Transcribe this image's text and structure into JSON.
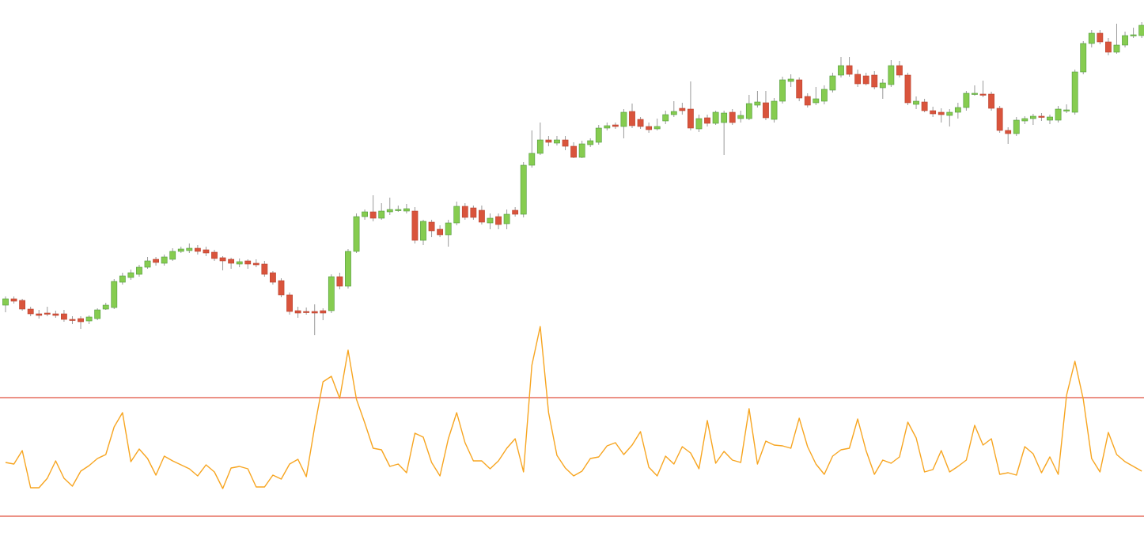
{
  "chart_data": [
    {
      "type": "candlestick",
      "open": [
        314,
        322,
        320,
        309,
        303,
        304,
        303,
        303,
        296,
        297,
        294,
        297,
        309,
        311,
        343,
        349,
        353,
        362,
        372,
        367,
        372,
        382,
        383,
        386,
        384,
        381,
        374,
        372,
        366,
        370,
        367,
        366,
        355,
        345,
        327,
        307,
        306,
        306,
        307,
        307,
        350,
        338,
        382,
        426,
        432,
        424,
        432,
        434,
        433,
        433,
        396,
        419,
        410,
        403,
        418,
        439,
        437,
        434,
        418,
        426,
        417,
        434,
        429,
        491,
        506,
        523,
        519,
        523,
        515,
        501,
        517,
        520,
        538,
        542,
        540,
        559,
        549,
        540,
        537,
        547,
        555,
        563,
        562,
        537,
        551,
        544,
        545,
        558,
        550,
        550,
        567,
        570,
        549,
        572,
        597,
        599,
        578,
        570,
        572,
        586,
        605,
        617,
        606,
        604,
        605,
        589,
        593,
        617,
        605,
        568,
        571,
        560,
        558,
        554,
        558,
        564,
        581,
        581,
        581,
        563,
        535,
        531,
        547,
        550,
        553,
        548,
        548,
        560,
        558,
        609,
        645,
        658,
        647,
        634,
        643,
        655,
        655
      ],
      "close": [
        322,
        319,
        309,
        303,
        301,
        303,
        301,
        296,
        295,
        293,
        299,
        308,
        314,
        344,
        351,
        355,
        362,
        370,
        368,
        375,
        382,
        385,
        386,
        382,
        380,
        373,
        370,
        367,
        369,
        366,
        365,
        353,
        343,
        327,
        306,
        304,
        305,
        304,
        304,
        350,
        338,
        382,
        426,
        432,
        424,
        433,
        435,
        435,
        436,
        396,
        420,
        408,
        403,
        418,
        439,
        425,
        425,
        419,
        424,
        416,
        429,
        429,
        491,
        506,
        523,
        520,
        523,
        515,
        501,
        518,
        522,
        538,
        541,
        540,
        558,
        541,
        540,
        536,
        540,
        555,
        559,
        560,
        538,
        550,
        544,
        558,
        557,
        545,
        554,
        569,
        571,
        551,
        572,
        599,
        600,
        576,
        567,
        575,
        587,
        604,
        617,
        606,
        594,
        594,
        590,
        595,
        617,
        605,
        570,
        572,
        560,
        556,
        555,
        558,
        564,
        582,
        582,
        580,
        563,
        535,
        531,
        548,
        550,
        553,
        552,
        552,
        562,
        561,
        609,
        645,
        658,
        647,
        634,
        643,
        655,
        656,
        668
      ],
      "high": [
        325,
        325,
        322,
        312,
        308,
        312,
        307,
        308,
        300,
        300,
        301,
        310,
        317,
        347,
        355,
        359,
        365,
        375,
        375,
        378,
        386,
        388,
        392,
        390,
        388,
        384,
        376,
        374,
        373,
        372,
        372,
        370,
        357,
        348,
        330,
        312,
        311,
        315,
        310,
        353,
        355,
        385,
        430,
        435,
        453,
        443,
        450,
        440,
        442,
        438,
        422,
        422,
        415,
        422,
        445,
        443,
        440,
        440,
        430,
        430,
        435,
        438,
        495,
        535,
        545,
        528,
        528,
        528,
        520,
        522,
        525,
        542,
        545,
        545,
        562,
        569,
        552,
        545,
        550,
        560,
        572,
        570,
        597,
        555,
        555,
        560,
        560,
        562,
        560,
        580,
        585,
        585,
        576,
        603,
        606,
        602,
        582,
        590,
        592,
        608,
        628,
        628,
        612,
        608,
        610,
        600,
        624,
        623,
        608,
        578,
        575,
        565,
        563,
        562,
        570,
        585,
        592,
        598,
        584,
        566,
        539,
        552,
        553,
        556,
        557,
        555,
        566,
        568,
        612,
        648,
        662,
        662,
        652,
        670,
        660,
        665,
        672
      ],
      "low": [
        305,
        316,
        307,
        300,
        297,
        300,
        298,
        293,
        290,
        284,
        290,
        295,
        308,
        309,
        340,
        346,
        350,
        360,
        364,
        364,
        370,
        380,
        380,
        378,
        376,
        370,
        358,
        360,
        362,
        360,
        362,
        350,
        340,
        324,
        302,
        298,
        302,
        276,
        295,
        304,
        334,
        335,
        380,
        422,
        420,
        422,
        428,
        432,
        430,
        392,
        390,
        400,
        400,
        388,
        415,
        422,
        422,
        416,
        410,
        410,
        410,
        426,
        425,
        488,
        504,
        515,
        516,
        510,
        500,
        500,
        514,
        517,
        535,
        537,
        525,
        538,
        537,
        532,
        535,
        543,
        552,
        555,
        535,
        533,
        540,
        542,
        504,
        542,
        545,
        548,
        564,
        548,
        545,
        569,
        590,
        572,
        564,
        567,
        568,
        583,
        602,
        603,
        590,
        592,
        587,
        575,
        590,
        602,
        567,
        562,
        558,
        552,
        545,
        540,
        550,
        560,
        579,
        577,
        560,
        532,
        518,
        528,
        543,
        542,
        547,
        543,
        545,
        557,
        555,
        606,
        640,
        644,
        630,
        632,
        640,
        652,
        652
      ],
      "up_color": "#86cc50",
      "down_color": "#d9543c",
      "wick_color": "#9a9a9a",
      "ylim": [
        0,
        700
      ]
    },
    {
      "type": "line",
      "values": [
        115,
        113,
        130,
        83,
        83,
        95,
        117,
        95,
        85,
        104,
        111,
        120,
        125,
        160,
        178,
        116,
        132,
        120,
        99,
        123,
        117,
        112,
        107,
        98,
        112,
        103,
        82,
        108,
        110,
        107,
        84,
        84,
        99,
        94,
        113,
        119,
        97,
        160,
        217,
        224,
        196,
        257,
        195,
        165,
        133,
        131,
        110,
        113,
        102,
        152,
        147,
        115,
        98,
        145,
        178,
        140,
        117,
        117,
        107,
        117,
        133,
        145,
        103,
        238,
        287,
        178,
        124,
        108,
        98,
        104,
        120,
        122,
        136,
        140,
        125,
        137,
        154,
        109,
        98,
        123,
        113,
        135,
        127,
        107,
        168,
        114,
        129,
        118,
        115,
        183,
        113,
        142,
        137,
        136,
        133,
        171,
        135,
        113,
        100,
        123,
        131,
        133,
        170,
        130,
        100,
        118,
        114,
        122,
        166,
        146,
        103,
        106,
        130,
        103,
        110,
        118,
        162,
        137,
        145,
        100,
        102,
        99,
        135,
        126,
        102,
        122,
        100,
        200,
        243,
        195,
        120,
        103,
        153,
        125,
        116,
        110,
        104
      ],
      "color": "#f7a520",
      "levels": [
        197,
        47
      ],
      "level_color": "#e0503f",
      "ylim": [
        4,
        300
      ]
    }
  ]
}
